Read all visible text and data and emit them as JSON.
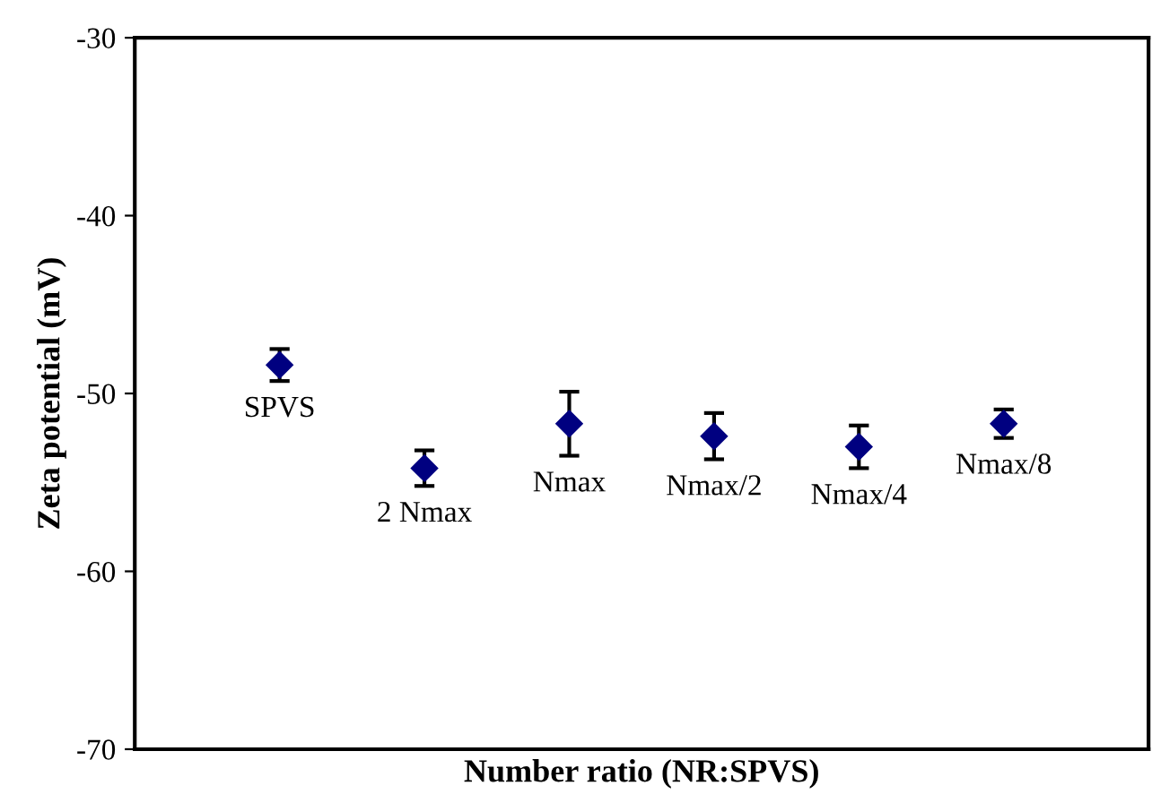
{
  "chart_data": {
    "type": "scatter",
    "xlabel": "Number ratio (NR:SPVS)",
    "ylabel": "Zeta potential (mV)",
    "categories": [
      "SPVS",
      "2 Nmax",
      "Nmax",
      "Nmax/2",
      "Nmax/4",
      "Nmax/8"
    ],
    "values": [
      -48.4,
      -54.2,
      -51.7,
      -52.4,
      -53.0,
      -51.7
    ],
    "errors": [
      0.9,
      1.0,
      1.8,
      1.3,
      1.2,
      0.8
    ],
    "color": "#000080",
    "marker": "diamond",
    "ylim": [
      -70,
      -30
    ],
    "yticks": [
      -70,
      -60,
      -50,
      -40,
      -30
    ],
    "tick_labels": "y",
    "grid": false
  }
}
